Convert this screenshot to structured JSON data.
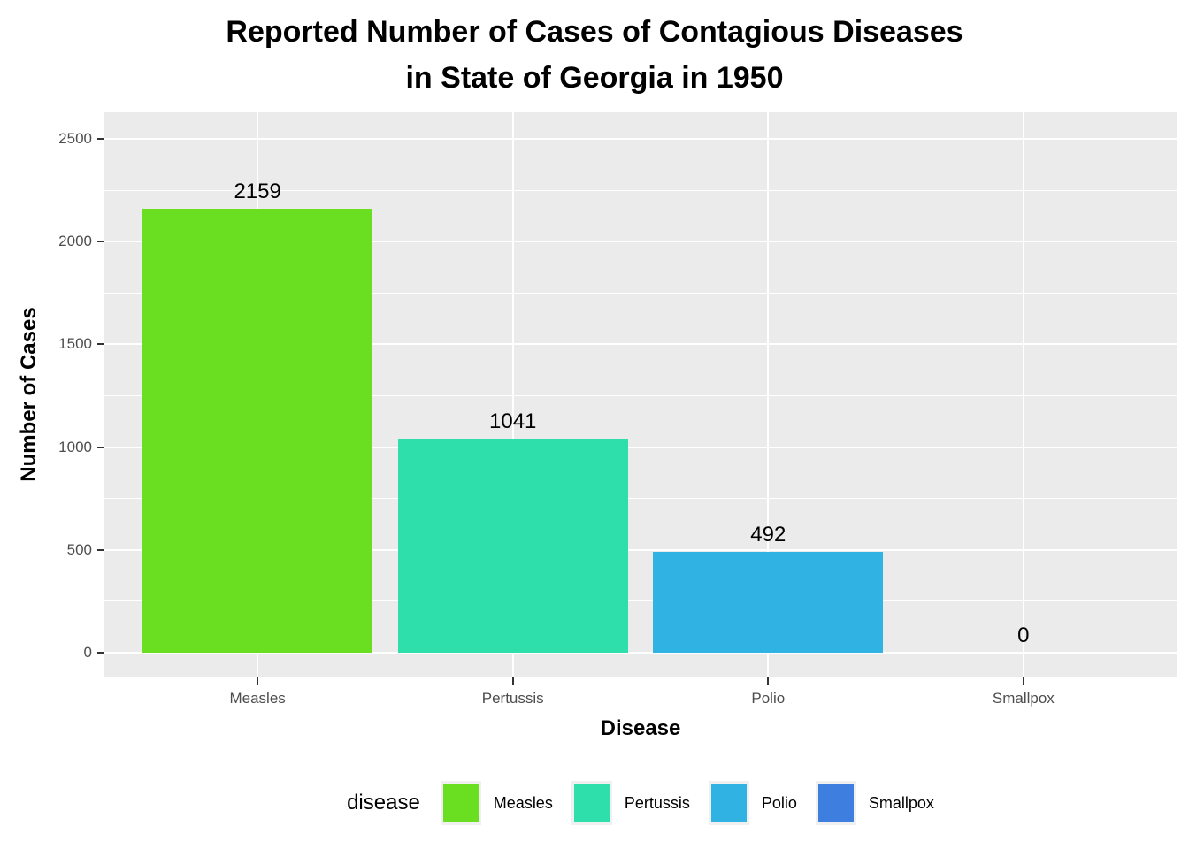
{
  "title": {
    "line1": "Reported Number of Cases of Contagious Diseases",
    "line2": "in State of Georgia in 1950"
  },
  "chart_data": {
    "type": "bar",
    "title": "Reported Number of Cases of Contagious Diseases in State of Georgia in 1950",
    "categories": [
      "Measles",
      "Pertussis",
      "Polio",
      "Smallpox"
    ],
    "values": [
      2159,
      1041,
      492,
      0
    ],
    "bar_labels": [
      "2159",
      "1041",
      "492",
      "0"
    ],
    "bar_colors": [
      "#6ADE21",
      "#2EDFAC",
      "#30B2E2",
      "#3E7EDE"
    ],
    "xlabel": "Disease",
    "ylabel": "Number of Cases",
    "ylim": [
      0,
      2500
    ],
    "y_major_ticks": [
      0,
      500,
      1000,
      1500,
      2000,
      2500
    ],
    "y_tick_labels": [
      "0",
      "500",
      "1000",
      "1500",
      "2000",
      "2500"
    ],
    "y_minor_step": 250,
    "grid": true,
    "legend_position": "bottom",
    "legend": {
      "title": "disease",
      "entries": [
        {
          "label": "Measles",
          "color": "#6ADE21"
        },
        {
          "label": "Pertussis",
          "color": "#2EDFAC"
        },
        {
          "label": "Polio",
          "color": "#30B2E2"
        },
        {
          "label": "Smallpox",
          "color": "#3E7EDE"
        }
      ]
    }
  },
  "colors": {
    "panel_background": "#EBEBEB",
    "gridline": "#FFFFFF",
    "tick_label": "#4D4D4D",
    "tick_mark": "#333333",
    "text": "#000000",
    "legend_key_background": "#F0F0F0"
  }
}
